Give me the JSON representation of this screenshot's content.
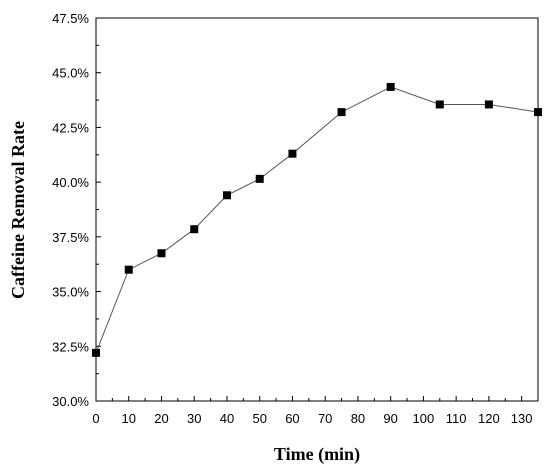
{
  "chart_data": {
    "type": "line",
    "title": "",
    "xlabel": "Time (min)",
    "ylabel": "Caffeine Removal Rate",
    "xlim": [
      0,
      135
    ],
    "ylim": [
      30.0,
      47.5
    ],
    "x_ticks": [
      0,
      10,
      20,
      30,
      40,
      50,
      60,
      70,
      80,
      90,
      100,
      110,
      120,
      130
    ],
    "x_tick_labels": [
      "0",
      "10",
      "20",
      "30",
      "40",
      "50",
      "60",
      "70",
      "80",
      "90",
      "100",
      "110",
      "120",
      "130"
    ],
    "y_ticks": [
      30.0,
      32.5,
      35.0,
      37.5,
      40.0,
      42.5,
      45.0,
      47.5
    ],
    "y_tick_labels": [
      "30.0%",
      "32.5%",
      "35.0%",
      "37.5%",
      "40.0%",
      "42.5%",
      "45.0%",
      "47.5%"
    ],
    "grid": false,
    "marker": "square",
    "line_color": "#555555",
    "marker_color": "#000000",
    "series": [
      {
        "x": [
          0,
          10,
          20,
          30,
          40,
          50,
          60,
          75,
          90,
          105,
          120,
          135
        ],
        "values": [
          32.2,
          36.0,
          36.75,
          37.85,
          39.4,
          40.15,
          41.3,
          43.2,
          44.35,
          43.55,
          43.55,
          43.2
        ]
      }
    ]
  }
}
